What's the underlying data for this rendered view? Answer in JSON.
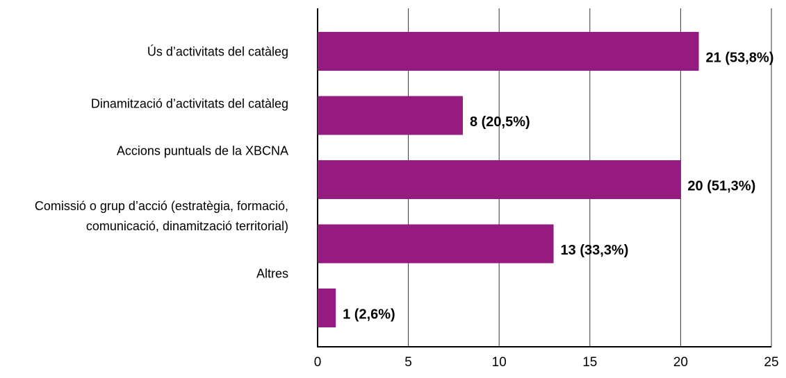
{
  "chart_data": {
    "type": "bar",
    "orientation": "horizontal",
    "categories": [
      "Ús d’activitats del catàleg",
      "Dinamització d’activitats del catàleg",
      "Accions puntuals de la XBCNA",
      "Comissió o grup d’acció (estratègia, formació,\ncomunicació, dinamització territorial)",
      "Altres"
    ],
    "values": [
      21,
      8,
      20,
      13,
      1
    ],
    "value_labels": [
      "21 (53,8%)",
      "8 (20,5%)",
      "20 (51,3%)",
      "13 (33,3%)",
      "1 (2,6%)"
    ],
    "color": "#951b81",
    "xlim": [
      0,
      25
    ],
    "xticks": [
      0,
      5,
      10,
      15,
      20,
      25
    ],
    "grid": true
  }
}
